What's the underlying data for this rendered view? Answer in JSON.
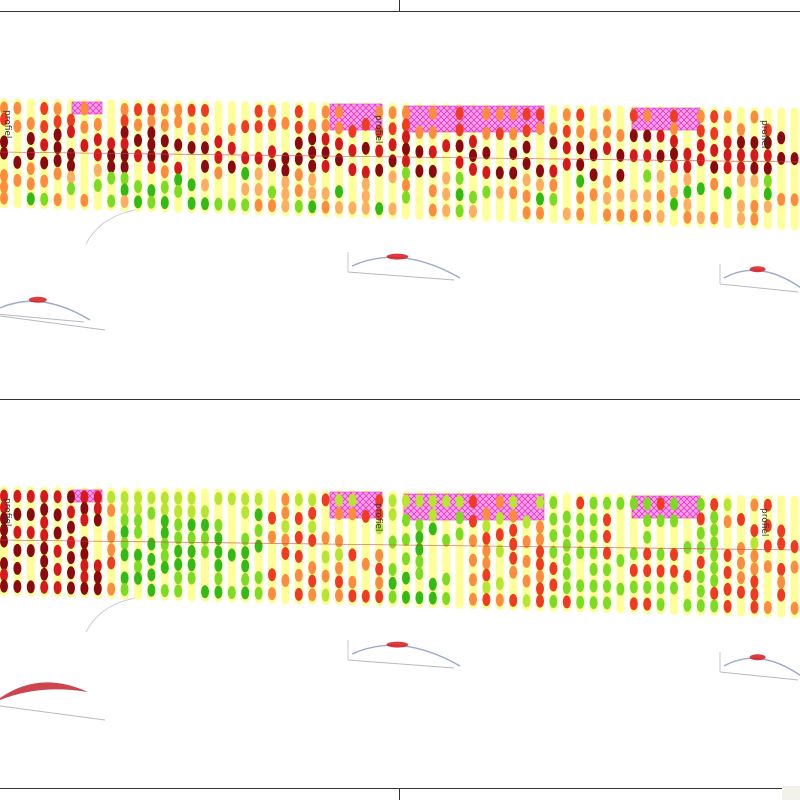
{
  "map": {
    "profile_label": "profiel",
    "colors": {
      "corridor": "#ffff99",
      "zone_fill": "#ff66dd",
      "zone_stroke": "#dd22cc",
      "section_line": "#cc4444",
      "dark_red": "#8b0a10",
      "red": "#d7191c",
      "orange_red": "#f03b20",
      "orange": "#fd8d3c",
      "light_orange": "#fdae61",
      "yellow_green": "#b8e62e",
      "light_green": "#7ddc1f",
      "green": "#33bb11",
      "profile_line": "#99aacc"
    },
    "panels": [
      {
        "name": "top",
        "profile_labels": [
          "profiel",
          "profiel",
          "profiel"
        ]
      },
      {
        "name": "bottom",
        "profile_labels": [
          "profiel",
          "profiel",
          "profiel"
        ]
      }
    ]
  }
}
